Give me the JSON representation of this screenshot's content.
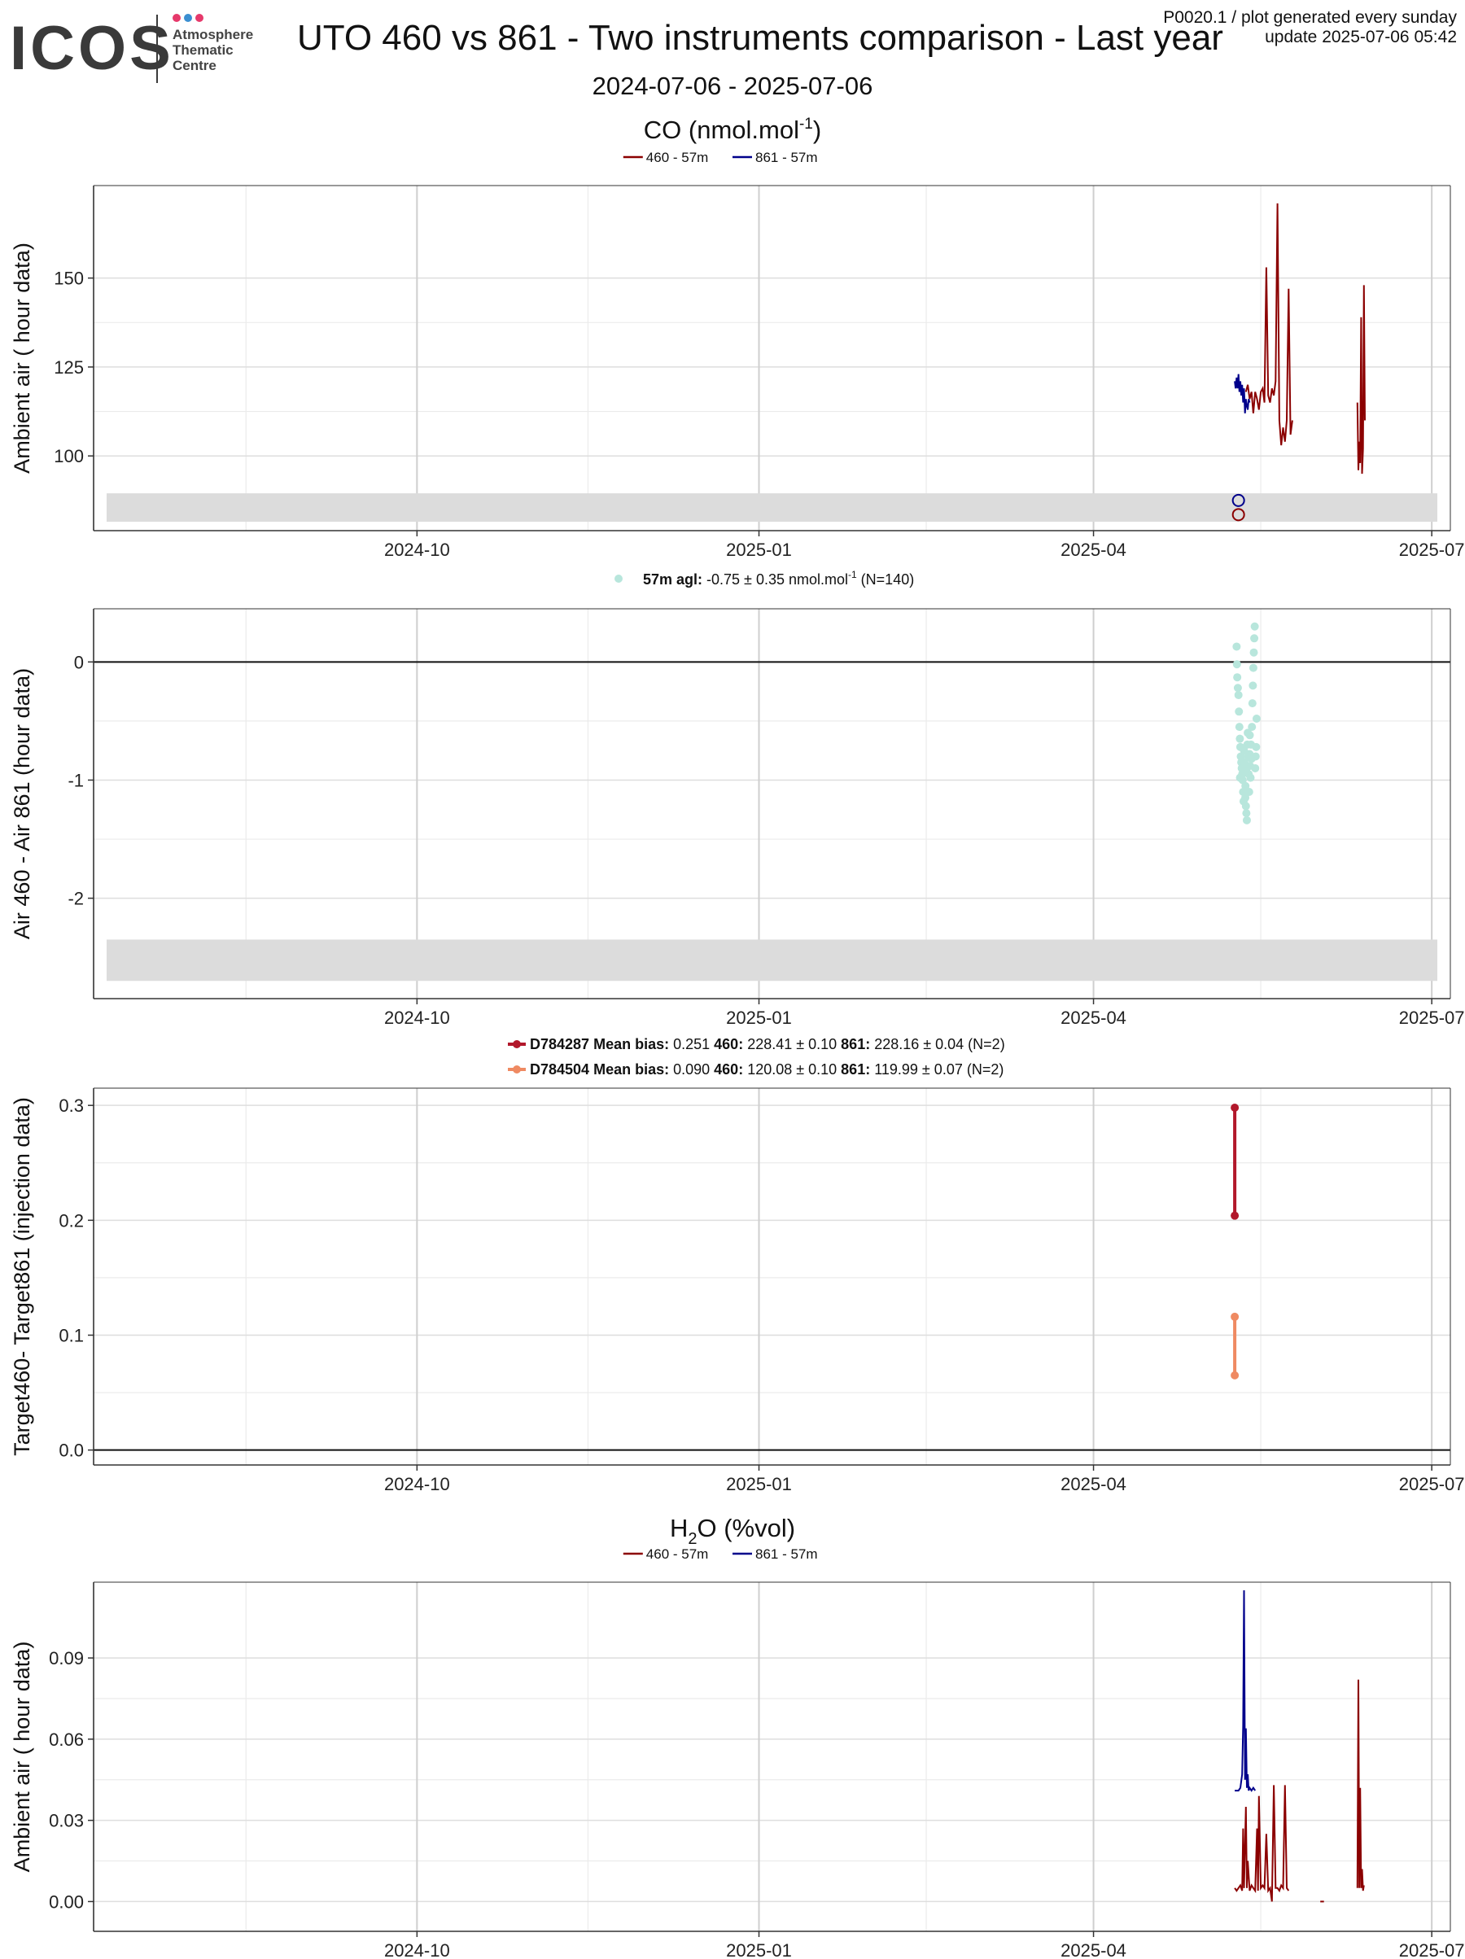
{
  "header": {
    "logo_text": "ICOS",
    "logo_sub": [
      "Atmosphere",
      "Thematic",
      "Centre"
    ],
    "title": "UTO 460 vs 861 - Two instruments comparison - Last year",
    "date_range": "2024-07-06 - 2025-07-06",
    "note_line1": "P0020.1 / plot generated every sunday",
    "note_line2": "update  2025-07-06 05:42"
  },
  "colors": {
    "s460": "#8b0000",
    "s861": "#00008b",
    "diff_points": "#b8e6dc",
    "d784287": "#b2182b",
    "d784504": "#ef8a62",
    "band": "#dcdcdc"
  },
  "x_axis": {
    "min": "2024-07-06",
    "max": "2025-07-06",
    "ticks": [
      {
        "date": "2024-10-01",
        "label": "2024-10"
      },
      {
        "date": "2025-01-01",
        "label": "2025-01"
      },
      {
        "date": "2025-04-01",
        "label": "2025-04"
      },
      {
        "date": "2025-07-01",
        "label": "2025-07"
      }
    ],
    "minor_ticks": [
      "2024-08-16",
      "2024-11-16",
      "2025-02-15",
      "2025-05-16"
    ]
  },
  "sections": {
    "co": {
      "title": "CO (nmol.mol",
      "sup": "-1",
      "title_end": ")"
    },
    "h2o": {
      "title": "H",
      "sub": "2",
      "title_end": "O (%vol)"
    }
  },
  "chart_data": [
    {
      "id": "co_air",
      "type": "line",
      "ylabel": "Ambient air ( hour data)",
      "ylim": [
        79,
        176
      ],
      "yticks": [
        100,
        125,
        150
      ],
      "band": [
        81.5,
        89.5
      ],
      "legend": [
        {
          "name": "460 - 57m",
          "color": "s460"
        },
        {
          "name": "861 - 57m",
          "color": "s861"
        }
      ],
      "series": [
        {
          "name": "460 - 57m",
          "color": "s460",
          "points": [
            [
              "2025-05-12",
              118
            ],
            [
              "2025-05-12T12",
              120
            ],
            [
              "2025-05-13",
              116
            ],
            [
              "2025-05-13T12",
              118
            ],
            [
              "2025-05-14",
              112
            ],
            [
              "2025-05-14T12",
              118
            ],
            [
              "2025-05-15",
              116
            ],
            [
              "2025-05-15T12",
              113
            ],
            [
              "2025-05-16",
              118
            ],
            [
              "2025-05-16T12",
              119
            ],
            [
              "2025-05-17",
              115
            ],
            [
              "2025-05-17T12",
              153
            ],
            [
              "2025-05-18",
              117
            ],
            [
              "2025-05-18T12",
              115
            ],
            [
              "2025-05-19",
              119
            ],
            [
              "2025-05-19T12",
              117
            ],
            [
              "2025-05-20",
              121
            ],
            [
              "2025-05-20T12",
              171
            ],
            [
              "2025-05-21",
              110
            ],
            [
              "2025-05-21T12",
              103
            ],
            [
              "2025-05-22",
              108
            ],
            [
              "2025-05-22T12",
              104
            ],
            [
              "2025-05-23",
              110
            ],
            [
              "2025-05-23T12",
              147
            ],
            [
              "2025-05-24",
              106
            ],
            [
              "2025-05-24T12",
              110
            ],
            null,
            [
              "2025-06-11",
              115
            ],
            [
              "2025-06-11T06",
              96
            ],
            [
              "2025-06-11T12",
              104
            ],
            [
              "2025-06-11T18",
              98
            ],
            [
              "2025-06-12",
              139
            ],
            [
              "2025-06-12T06",
              95
            ],
            [
              "2025-06-12T12",
              102
            ],
            [
              "2025-06-12T18",
              148
            ],
            [
              "2025-06-13",
              110
            ]
          ]
        },
        {
          "name": "861 - 57m",
          "color": "s861",
          "points": [
            [
              "2025-05-09",
              121
            ],
            [
              "2025-05-09T06",
              119
            ],
            [
              "2025-05-09T12",
              122
            ],
            [
              "2025-05-09T18",
              119
            ],
            [
              "2025-05-10",
              123
            ],
            [
              "2025-05-10T06",
              118
            ],
            [
              "2025-05-10T12",
              121
            ],
            [
              "2025-05-10T18",
              117
            ],
            [
              "2025-05-11",
              120
            ],
            [
              "2025-05-11T06",
              115
            ],
            [
              "2025-05-11T12",
              119
            ],
            [
              "2025-05-11T18",
              112
            ],
            [
              "2025-05-12",
              116
            ],
            [
              "2025-05-12T06",
              114
            ],
            [
              "2025-05-12T12",
              113
            ],
            [
              "2025-05-12T18",
              116
            ],
            [
              "2025-05-13",
              115
            ]
          ]
        }
      ],
      "markers": [
        {
          "date": "2025-05-10",
          "value": 87.5,
          "color": "s861"
        },
        {
          "date": "2025-05-10",
          "value": 83.5,
          "color": "s460"
        }
      ]
    },
    {
      "id": "co_diff",
      "type": "scatter",
      "ylabel": "Air 460 - Air 861 (hour data)",
      "ylim": [
        -2.85,
        0.45
      ],
      "yticks": [
        -2,
        -1,
        0
      ],
      "zero_line": true,
      "band": [
        -2.7,
        -2.35
      ],
      "legend_label": "57m agl:",
      "legend_text": "-0.75 ± 0.35 nmol.mol",
      "legend_sup": "-1",
      "legend_n": "(N=140)",
      "color": "diff_points",
      "points": [
        [
          "2025-05-09T12",
          0.13
        ],
        [
          "2025-05-09T14",
          -0.02
        ],
        [
          "2025-05-09T16",
          -0.13
        ],
        [
          "2025-05-09T20",
          -0.22
        ],
        [
          "2025-05-10",
          -0.28
        ],
        [
          "2025-05-10T03",
          -0.42
        ],
        [
          "2025-05-10T06",
          -0.55
        ],
        [
          "2025-05-10T09",
          -0.65
        ],
        [
          "2025-05-10T12",
          -0.72
        ],
        [
          "2025-05-10T15",
          -0.8
        ],
        [
          "2025-05-10T18",
          -0.85
        ],
        [
          "2025-05-10T21",
          -0.9
        ],
        [
          "2025-05-11",
          -0.95
        ],
        [
          "2025-05-11T03",
          -1.0
        ],
        [
          "2025-05-11T06",
          -1.1
        ],
        [
          "2025-05-11T09",
          -1.18
        ],
        [
          "2025-05-11T12",
          -0.75
        ],
        [
          "2025-05-11T15",
          -0.85
        ],
        [
          "2025-05-11T18",
          -0.92
        ],
        [
          "2025-05-11T21",
          -1.05
        ],
        [
          "2025-05-12",
          -1.22
        ],
        [
          "2025-05-12T03",
          -1.28
        ],
        [
          "2025-05-12T06",
          -1.34
        ],
        [
          "2025-05-12T09",
          -0.7
        ],
        [
          "2025-05-12T12",
          -0.6
        ],
        [
          "2025-05-12T15",
          -0.8
        ],
        [
          "2025-05-12T18",
          -0.95
        ],
        [
          "2025-05-12T21",
          -1.1
        ],
        [
          "2025-05-13",
          -0.78
        ],
        [
          "2025-05-13T03",
          -0.88
        ],
        [
          "2025-05-13T06",
          -0.98
        ],
        [
          "2025-05-13T09",
          -0.7
        ],
        [
          "2025-05-13T12",
          -0.82
        ],
        [
          "2025-05-13T15",
          -0.55
        ],
        [
          "2025-05-13T18",
          -0.35
        ],
        [
          "2025-05-13T21",
          -0.2
        ],
        [
          "2025-05-14",
          -0.05
        ],
        [
          "2025-05-14T03",
          0.08
        ],
        [
          "2025-05-14T06",
          0.2
        ],
        [
          "2025-05-14T09",
          0.3
        ],
        [
          "2025-05-14T12",
          -0.9
        ],
        [
          "2025-05-14T15",
          -0.8
        ],
        [
          "2025-05-14T18",
          -0.72
        ],
        [
          "2025-05-14T21",
          -0.48
        ],
        [
          "2025-05-12T05",
          -0.9
        ],
        [
          "2025-05-11T20",
          -1.15
        ],
        [
          "2025-05-13T01",
          -0.62
        ],
        [
          "2025-05-10T10",
          -0.98
        ]
      ]
    },
    {
      "id": "target",
      "type": "line",
      "ylabel": "Target460- Target861 (injection data)",
      "ylim": [
        -0.013,
        0.315
      ],
      "yticks": [
        0.0,
        0.1,
        0.2,
        0.3
      ],
      "zero_line": true,
      "series": [
        {
          "name": "D784287",
          "color": "d784287",
          "points": [
            [
              "2025-05-09",
              0.298
            ],
            [
              "2025-05-09",
              0.204
            ]
          ]
        },
        {
          "name": "D784504",
          "color": "d784504",
          "points": [
            [
              "2025-05-09",
              0.116
            ],
            [
              "2025-05-09",
              0.065
            ]
          ]
        }
      ],
      "legend_rows": [
        {
          "name": "D784287",
          "color": "d784287",
          "bias_label": "Mean bias:",
          "bias": "0.251",
          "a_label": "460:",
          "a": "228.41 ± 0.10",
          "b_label": "861:",
          "b": "228.16 ± 0.04 (N=2)"
        },
        {
          "name": "D784504",
          "color": "d784504",
          "bias_label": "Mean bias:",
          "bias": "0.090",
          "a_label": "460:",
          "a": "120.08 ± 0.10",
          "b_label": "861:",
          "b": "119.99 ± 0.07 (N=2)"
        }
      ]
    },
    {
      "id": "h2o_air",
      "type": "line",
      "ylabel": "Ambient air ( hour data)",
      "ylim": [
        -0.011,
        0.118
      ],
      "yticks": [
        0.0,
        0.03,
        0.06,
        0.09
      ],
      "legend": [
        {
          "name": "460 - 57m",
          "color": "s460"
        },
        {
          "name": "861 - 57m",
          "color": "s861"
        }
      ],
      "series": [
        {
          "name": "460 - 57m",
          "color": "s460",
          "points": [
            [
              "2025-05-09",
              0.005
            ],
            [
              "2025-05-09T12",
              0.004
            ],
            [
              "2025-05-10",
              0.005
            ],
            [
              "2025-05-10T12",
              0.006
            ],
            [
              "2025-05-11",
              0.004
            ],
            [
              "2025-05-11T06",
              0.027
            ],
            [
              "2025-05-11T12",
              0.005
            ],
            [
              "2025-05-12",
              0.035
            ],
            [
              "2025-05-12T06",
              0.005
            ],
            [
              "2025-05-12T12",
              0.015
            ],
            [
              "2025-05-13",
              0.004
            ],
            [
              "2025-05-13T12",
              0.006
            ],
            [
              "2025-05-14",
              0.005
            ],
            [
              "2025-05-14T12",
              0.004
            ],
            [
              "2025-05-15",
              0.027
            ],
            [
              "2025-05-15T06",
              0.004
            ],
            [
              "2025-05-15T12",
              0.039
            ],
            [
              "2025-05-16",
              0.005
            ],
            [
              "2025-05-16T12",
              0.006
            ],
            [
              "2025-05-17",
              0.005
            ],
            [
              "2025-05-17T12",
              0.025
            ],
            [
              "2025-05-18",
              0.004
            ],
            [
              "2025-05-18T12",
              0.005
            ],
            [
              "2025-05-19",
              0.0
            ],
            [
              "2025-05-19T12",
              0.043
            ],
            [
              "2025-05-20",
              0.005
            ],
            [
              "2025-05-20T12",
              0.005
            ],
            [
              "2025-05-21",
              0.004
            ],
            [
              "2025-05-21T12",
              0.006
            ],
            [
              "2025-05-22",
              0.005
            ],
            [
              "2025-05-22T12",
              0.043
            ],
            [
              "2025-05-23",
              0.005
            ],
            [
              "2025-05-23T12",
              0.004
            ],
            null,
            [
              "2025-06-01",
              0.0
            ],
            [
              "2025-06-02",
              0.0
            ],
            null,
            [
              "2025-06-11",
              0.005
            ],
            [
              "2025-06-11T06",
              0.082
            ],
            [
              "2025-06-11T12",
              0.005
            ],
            [
              "2025-06-11T18",
              0.042
            ],
            [
              "2025-06-12",
              0.005
            ],
            [
              "2025-06-12T06",
              0.012
            ],
            [
              "2025-06-12T12",
              0.004
            ],
            [
              "2025-06-12T18",
              0.006
            ]
          ]
        },
        {
          "name": "861 - 57m",
          "color": "s861",
          "points": [
            [
              "2025-05-09",
              0.041
            ],
            [
              "2025-05-10",
              0.041
            ],
            [
              "2025-05-10T12",
              0.042
            ],
            [
              "2025-05-11",
              0.047
            ],
            [
              "2025-05-11T06",
              0.065
            ],
            [
              "2025-05-11T12",
              0.115
            ],
            [
              "2025-05-11T18",
              0.045
            ],
            [
              "2025-05-12",
              0.064
            ],
            [
              "2025-05-12T06",
              0.042
            ],
            [
              "2025-05-12T12",
              0.047
            ],
            [
              "2025-05-12T18",
              0.041
            ],
            [
              "2025-05-13",
              0.042
            ],
            [
              "2025-05-13T12",
              0.041
            ],
            [
              "2025-05-14",
              0.042
            ],
            [
              "2025-05-14T12",
              0.041
            ]
          ]
        }
      ]
    }
  ]
}
